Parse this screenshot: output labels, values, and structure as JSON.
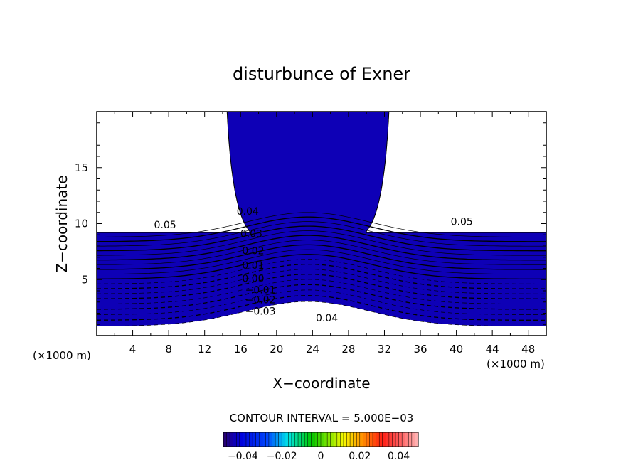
{
  "chart_data": {
    "type": "contour",
    "title": "disturbunce of Exner",
    "xlabel": "X−coordinate",
    "ylabel": "Z−coordinate",
    "x_unit": "(×1000 m)",
    "z_unit": "(×1000 m)",
    "xlim": [
      0,
      50
    ],
    "ylim": [
      0,
      20
    ],
    "x_ticks": [
      4,
      8,
      12,
      16,
      20,
      24,
      28,
      32,
      36,
      40,
      44,
      48
    ],
    "y_ticks": [
      5,
      10,
      15
    ],
    "contour_interval_text": "CONTOUR INTERVAL = 5.000E−03",
    "colorbar": {
      "range": [
        -0.05,
        0.05
      ],
      "ticks": [
        -0.04,
        -0.02,
        0,
        0.02,
        0.04
      ],
      "tick_labels": [
        "−0.04",
        "−0.02",
        "0",
        "0.02",
        "0.04"
      ]
    },
    "contour_labels": [
      {
        "text": "0.05",
        "x": 7.6,
        "z": 9.9
      },
      {
        "text": "0.04",
        "x": 16.8,
        "z": 11.1
      },
      {
        "text": "0.03",
        "x": 17.2,
        "z": 9.1
      },
      {
        "text": "0.02",
        "x": 17.4,
        "z": 7.6
      },
      {
        "text": "0.01",
        "x": 17.4,
        "z": 6.3
      },
      {
        "text": "0.00",
        "x": 17.4,
        "z": 5.1
      },
      {
        "text": "−0.01",
        "x": 18.2,
        "z": 4.1
      },
      {
        "text": "−0.02",
        "x": 18.2,
        "z": 3.2
      },
      {
        "text": "−0.03",
        "x": 18.2,
        "z": 2.2
      },
      {
        "text": "0.04",
        "x": 25.6,
        "z": 1.6
      },
      {
        "text": "0.05",
        "x": 40.6,
        "z": 10.2
      }
    ]
  }
}
